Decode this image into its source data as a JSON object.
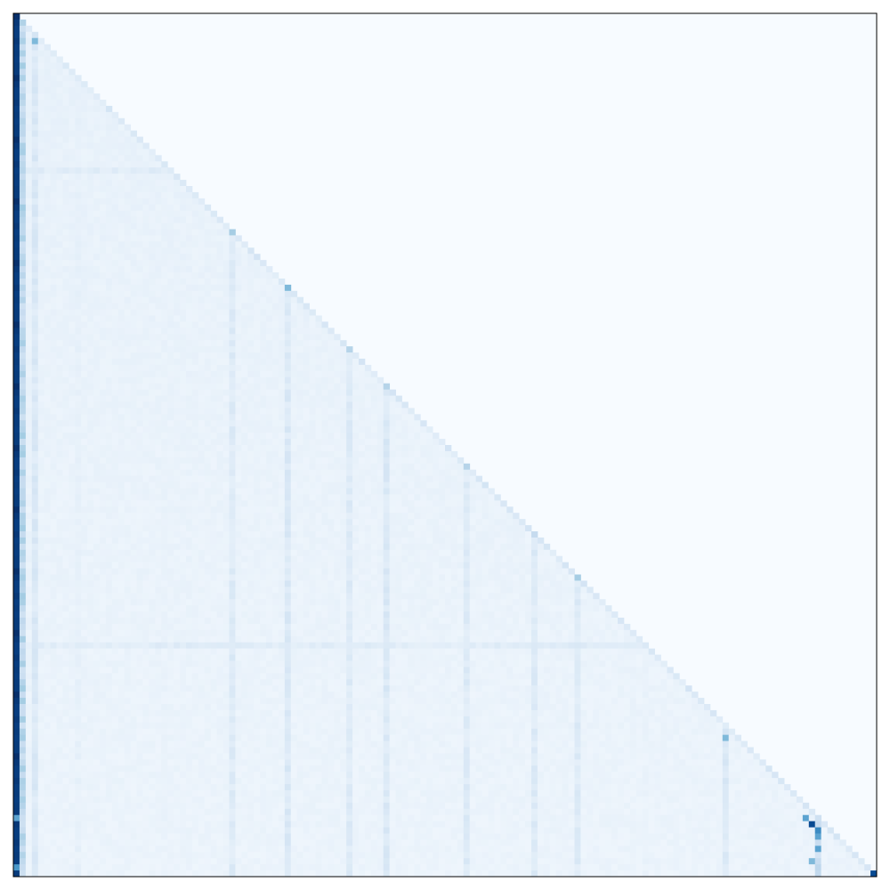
{
  "chart_data": {
    "type": "heatmap",
    "title": "",
    "xlabel": "",
    "ylabel": "",
    "n": 140,
    "colormap": "Blues",
    "vmin": 0,
    "vmax": 1,
    "colors": {
      "low": "#f7fbff",
      "high": "#08306b",
      "frame": "#000000"
    },
    "grid": false,
    "legend": "none",
    "mask": "upper-triangle",
    "values_description_free": true,
    "base_level": 0.06,
    "first_column_values": [
      1.0,
      0.97,
      0.95,
      0.95,
      0.97,
      0.95,
      0.96,
      0.95,
      0.96,
      0.96
    ],
    "column_profiles": [
      {
        "col": 1,
        "level": 0.45
      },
      {
        "col": 3,
        "level": 0.22
      },
      {
        "col": 10,
        "level": 0.12
      },
      {
        "col": 24,
        "level": 0.1
      },
      {
        "col": 35,
        "level": 0.2
      },
      {
        "col": 44,
        "level": 0.22
      },
      {
        "col": 54,
        "level": 0.2
      },
      {
        "col": 60,
        "level": 0.22
      },
      {
        "col": 73,
        "level": 0.2
      },
      {
        "col": 84,
        "level": 0.2
      },
      {
        "col": 91,
        "level": 0.2
      },
      {
        "col": 102,
        "level": 0.1
      },
      {
        "col": 115,
        "level": 0.22
      },
      {
        "col": 130,
        "level": 0.35
      }
    ],
    "highlight_cells": [
      {
        "row": 4,
        "col": 3,
        "value": 0.45
      },
      {
        "row": 35,
        "col": 35,
        "value": 0.35
      },
      {
        "row": 44,
        "col": 44,
        "value": 0.45
      },
      {
        "row": 54,
        "col": 54,
        "value": 0.3
      },
      {
        "row": 60,
        "col": 60,
        "value": 0.3
      },
      {
        "row": 73,
        "col": 73,
        "value": 0.3
      },
      {
        "row": 84,
        "col": 84,
        "value": 0.25
      },
      {
        "row": 91,
        "col": 91,
        "value": 0.35
      },
      {
        "row": 117,
        "col": 115,
        "value": 0.45
      },
      {
        "row": 130,
        "col": 128,
        "value": 0.55
      },
      {
        "row": 131,
        "col": 129,
        "value": 0.9
      },
      {
        "row": 132,
        "col": 130,
        "value": 0.65
      },
      {
        "row": 133,
        "col": 130,
        "value": 0.55
      },
      {
        "row": 135,
        "col": 130,
        "value": 0.55
      },
      {
        "row": 137,
        "col": 129,
        "value": 0.45
      },
      {
        "row": 139,
        "col": 139,
        "value": 0.9
      }
    ],
    "highlight_rows": [
      {
        "row": 25,
        "level": 0.14
      },
      {
        "row": 102,
        "level": 0.14
      }
    ]
  }
}
